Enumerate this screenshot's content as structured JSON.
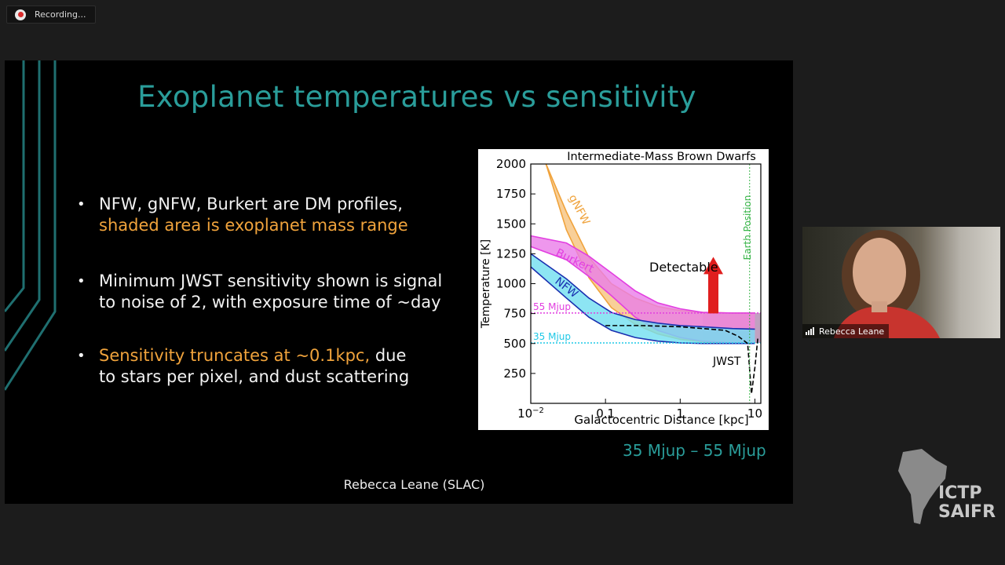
{
  "recording": {
    "label": "Recording..."
  },
  "slide": {
    "title": "Exoplanet temperatures vs sensitivity",
    "bullets": [
      {
        "line1": "NFW, gNFW, Burkert are DM profiles,",
        "line2": "shaded area is exoplanet mass range"
      },
      {
        "line1": "Minimum JWST sensitivity shown is signal",
        "line2": "to noise of 2, with exposure time of ~day"
      },
      {
        "line1": "Sensitivity truncates at ~0.1kpc,",
        "line1b": " due",
        "line2": "to stars per pixel, and dust scattering"
      }
    ],
    "mass_range": "35 Mjup – 55 Mjup",
    "presenter": "Rebecca Leane (SLAC)"
  },
  "chart_data": {
    "type": "line",
    "title": "Intermediate-Mass Brown Dwarfs",
    "xlabel": "Galactocentric Distance [kpc]",
    "ylabel": "Temperature [K]",
    "x_scale": "log",
    "xlim": [
      0.01,
      12
    ],
    "ylim": [
      0,
      2000
    ],
    "x_ticks": [
      "10^-2",
      "0.1",
      "1",
      "10"
    ],
    "y_ticks": [
      250,
      500,
      750,
      1000,
      1250,
      1500,
      1750,
      2000
    ],
    "annotations": [
      "gNFW",
      "Burkert",
      "NFW",
      "Detectable",
      "Earth Position",
      "55 Mjup",
      "35 Mjup",
      "JWST"
    ],
    "series": [
      {
        "name": "gNFW",
        "color": "#f0a33c",
        "x": [
          0.016,
          0.03,
          0.06,
          0.12,
          0.25,
          0.5,
          1,
          2,
          5,
          10
        ],
        "upper": [
          2000,
          1600,
          1220,
          1000,
          880,
          810,
          775,
          760,
          755,
          755
        ],
        "lower": [
          2000,
          1450,
          1050,
          800,
          660,
          580,
          535,
          515,
          505,
          505
        ]
      },
      {
        "name": "Burkert",
        "color": "#e23ee0",
        "x": [
          0.01,
          0.03,
          0.06,
          0.12,
          0.25,
          0.5,
          1,
          2,
          5,
          10
        ],
        "upper": [
          1400,
          1340,
          1230,
          1090,
          940,
          840,
          790,
          760,
          755,
          755
        ],
        "lower": [
          1310,
          1200,
          1060,
          900,
          720,
          610,
          550,
          520,
          505,
          505
        ]
      },
      {
        "name": "NFW",
        "color": "#1a2fb0",
        "x": [
          0.01,
          0.03,
          0.06,
          0.12,
          0.25,
          0.5,
          1,
          2,
          5,
          10
        ],
        "upper": [
          1250,
          1040,
          880,
          760,
          700,
          670,
          650,
          640,
          625,
          620
        ],
        "lower": [
          1140,
          880,
          720,
          610,
          550,
          520,
          505,
          500,
          500,
          500
        ]
      },
      {
        "name": "JWST",
        "color": "#000000",
        "x": [
          0.1,
          0.3,
          1,
          2,
          4,
          6,
          8,
          9,
          10,
          11
        ],
        "y": [
          650,
          650,
          640,
          625,
          610,
          560,
          500,
          80,
          300,
          560
        ]
      }
    ],
    "levels": [
      {
        "name": "55 Mjup",
        "y": 755,
        "color": "#e23ee0"
      },
      {
        "name": "35 Mjup",
        "y": 505,
        "color": "#1fc8e6"
      }
    ],
    "earth_position_kpc": 8.5
  },
  "webcam": {
    "name": "Rebecca Leane"
  },
  "watermark": {
    "line1": "ICTP",
    "line2": "SAIFR"
  }
}
